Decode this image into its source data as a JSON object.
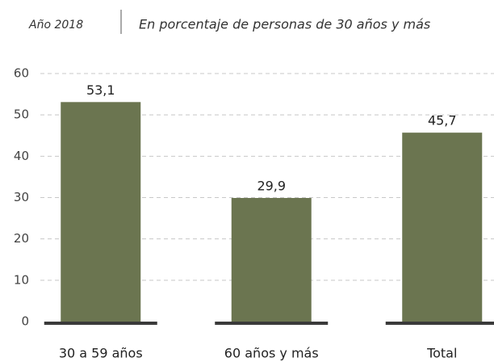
{
  "chart_data": {
    "type": "bar",
    "title": "Año 2018",
    "subtitle": "En porcentaje de personas de 30 años y más",
    "categories": [
      "30 a 59 años",
      "60 años y más",
      "Total"
    ],
    "values": [
      53.1,
      29.9,
      45.7
    ],
    "value_labels": [
      "53,1",
      "29,9",
      "45,7"
    ],
    "color": "#6b7550",
    "ylim": [
      0,
      60
    ],
    "yticks": [
      0,
      10,
      20,
      30,
      40,
      50,
      60
    ],
    "grid": true
  }
}
